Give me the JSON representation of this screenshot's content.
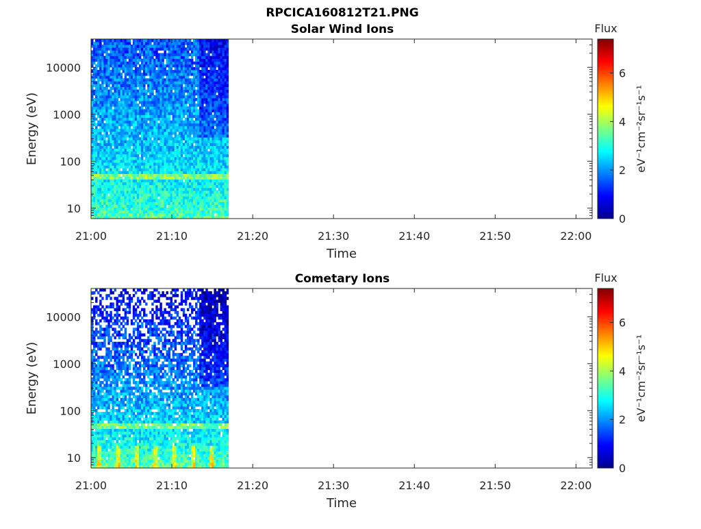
{
  "figure_title": "RPCICA160812T21.PNG",
  "chart_data": [
    {
      "type": "heatmap",
      "title": "Solar Wind Ions",
      "xlabel": "Time",
      "ylabel": "Energy (eV)",
      "x_ticks": [
        "21:00",
        "21:10",
        "21:20",
        "21:30",
        "21:40",
        "21:50",
        "22:00"
      ],
      "x_range": [
        "21:00",
        "22:02"
      ],
      "y_scale": "log",
      "y_ticks": [
        10,
        100,
        1000,
        10000
      ],
      "y_range": [
        6,
        40000
      ],
      "data_extent": {
        "start": "21:00",
        "end": "21:17"
      },
      "energy_band_eV": 48,
      "colorbar": {
        "title": "Flux",
        "label": "eV⁻¹cm⁻²sr⁻¹s⁻¹",
        "ticks": [
          0,
          2,
          4,
          6
        ],
        "range": [
          0,
          7.4
        ],
        "colormap": "jet"
      },
      "flux_profile": {
        "low_energy_level": 3.4,
        "high_energy_level": 1.5,
        "sparseness_high_energy": 0.08
      },
      "grid": false
    },
    {
      "type": "heatmap",
      "title": "Cometary Ions",
      "xlabel": "Time",
      "ylabel": "Energy (eV)",
      "x_ticks": [
        "21:00",
        "21:10",
        "21:20",
        "21:30",
        "21:40",
        "21:50",
        "22:00"
      ],
      "x_range": [
        "21:00",
        "22:02"
      ],
      "y_scale": "log",
      "y_ticks": [
        10,
        100,
        1000,
        10000
      ],
      "y_range": [
        6,
        40000
      ],
      "data_extent": {
        "start": "21:00",
        "end": "21:17"
      },
      "energy_band_eV": 48,
      "colorbar": {
        "title": "Flux",
        "label": "eV⁻¹cm⁻²sr⁻¹s⁻¹",
        "ticks": [
          0,
          2,
          4,
          6
        ],
        "range": [
          0,
          7.4
        ],
        "colormap": "jet"
      },
      "flux_profile": {
        "low_energy_level": 3.5,
        "high_energy_level": 0.9,
        "sparseness_high_energy": 0.55
      },
      "grid": false
    }
  ]
}
